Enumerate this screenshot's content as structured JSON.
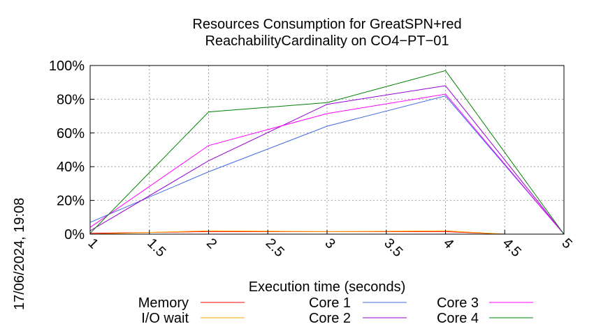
{
  "chart_data": {
    "type": "line",
    "title": "Resources Consumption for GreatSPN+red",
    "subtitle": "ReachabilityCardinality on CO4−PT−01",
    "xlabel": "Execution time (seconds)",
    "ylabel": "",
    "xlim": [
      1,
      5
    ],
    "ylim": [
      0,
      100
    ],
    "x_ticks": [
      "1",
      "1.5",
      "2",
      "2.5",
      "3",
      "3.5",
      "4",
      "4.5",
      "5"
    ],
    "y_ticks": [
      "0%",
      "20%",
      "40%",
      "60%",
      "80%",
      "100%"
    ],
    "grid": true,
    "legend_position": "bottom",
    "timestamp": "17/06/2024, 19:08",
    "series": [
      {
        "name": "Memory",
        "color": "#ff0000",
        "x": [
          1,
          2,
          3,
          4,
          4.5,
          5
        ],
        "y": [
          0.5,
          1.5,
          1.5,
          1.5,
          0,
          0
        ]
      },
      {
        "name": "I/O wait",
        "color": "#ffa500",
        "x": [
          1,
          2,
          3,
          4,
          4.5,
          5
        ],
        "y": [
          0,
          2,
          1.5,
          2,
          0,
          0
        ]
      },
      {
        "name": "Core 1",
        "color": "#4169e1",
        "x": [
          1,
          2,
          3,
          4,
          5
        ],
        "y": [
          7,
          37,
          64,
          82,
          0
        ]
      },
      {
        "name": "Core 2",
        "color": "#9400d3",
        "x": [
          1,
          2,
          3,
          4,
          5
        ],
        "y": [
          2,
          43.5,
          77,
          88,
          0
        ]
      },
      {
        "name": "Core 3",
        "color": "#ff00ff",
        "x": [
          1,
          2,
          3,
          4,
          5
        ],
        "y": [
          4,
          52.5,
          71.5,
          83,
          0
        ]
      },
      {
        "name": "Core 4",
        "color": "#008000",
        "x": [
          1,
          2,
          3,
          4,
          5
        ],
        "y": [
          0.5,
          72.5,
          78,
          97,
          0
        ]
      }
    ]
  }
}
